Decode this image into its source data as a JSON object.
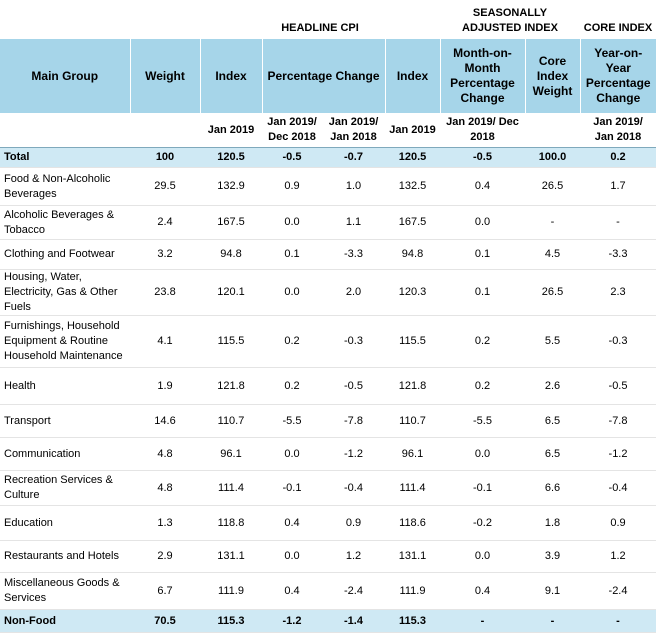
{
  "header": {
    "groups": [
      "HEADLINE CPI",
      "SEASONALLY ADJUSTED INDEX",
      "CORE INDEX"
    ],
    "columns": [
      "Main Group",
      "Weight",
      "Index",
      "Percentage Change",
      "Index",
      "Month-on-Month Percentage Change",
      "Core Index Weight",
      "Year-on-Year Percentage Change"
    ],
    "subheaders": [
      null,
      null,
      "Jan 2019",
      "Jan 2019/ Dec 2018",
      "Jan 2019/ Jan 2018",
      "Jan 2019",
      "Jan 2019/ Dec 2018",
      null,
      "Jan 2019/ Jan 2018"
    ]
  },
  "rows": [
    {
      "label": "Total",
      "values": [
        "100",
        "120.5",
        "-0.5",
        "-0.7",
        "120.5",
        "-0.5",
        "100.0",
        "0.2"
      ]
    },
    {
      "label": "Food & Non-Alcoholic Beverages",
      "values": [
        "29.5",
        "132.9",
        "0.9",
        "1.0",
        "132.5",
        "0.4",
        "26.5",
        "1.7"
      ]
    },
    {
      "label": "Alcoholic Beverages & Tobacco",
      "values": [
        "2.4",
        "167.5",
        "0.0",
        "1.1",
        "167.5",
        "0.0",
        "-",
        "-"
      ]
    },
    {
      "label": "Clothing and Footwear",
      "values": [
        "3.2",
        "94.8",
        "0.1",
        "-3.3",
        "94.8",
        "0.1",
        "4.5",
        "-3.3"
      ]
    },
    {
      "label": "Housing, Water, Electricity, Gas & Other Fuels",
      "values": [
        "23.8",
        "120.1",
        "0.0",
        "2.0",
        "120.3",
        "0.1",
        "26.5",
        "2.3"
      ]
    },
    {
      "label": "Furnishings, Household Equipment & Routine Household Maintenance",
      "values": [
        "4.1",
        "115.5",
        "0.2",
        "-0.3",
        "115.5",
        "0.2",
        "5.5",
        "-0.3"
      ]
    },
    {
      "label": "Health",
      "values": [
        "1.9",
        "121.8",
        "0.2",
        "-0.5",
        "121.8",
        "0.2",
        "2.6",
        "-0.5"
      ]
    },
    {
      "label": "Transport",
      "values": [
        "14.6",
        "110.7",
        "-5.5",
        "-7.8",
        "110.7",
        "-5.5",
        "6.5",
        "-7.8"
      ]
    },
    {
      "label": "Communication",
      "values": [
        "4.8",
        "96.1",
        "0.0",
        "-1.2",
        "96.1",
        "0.0",
        "6.5",
        "-1.2"
      ]
    },
    {
      "label": "Recreation Services & Culture",
      "values": [
        "4.8",
        "111.4",
        "-0.1",
        "-0.4",
        "111.4",
        "-0.1",
        "6.6",
        "-0.4"
      ]
    },
    {
      "label": "Education",
      "values": [
        "1.3",
        "118.8",
        "0.4",
        "0.9",
        "118.6",
        "-0.2",
        "1.8",
        "0.9"
      ]
    },
    {
      "label": "Restaurants and Hotels",
      "values": [
        "2.9",
        "131.1",
        "0.0",
        "1.2",
        "131.1",
        "0.0",
        "3.9",
        "1.2"
      ]
    },
    {
      "label": "Miscellaneous Goods & Services",
      "values": [
        "6.7",
        "111.9",
        "0.4",
        "-2.4",
        "111.9",
        "0.4",
        "9.1",
        "-2.4"
      ]
    },
    {
      "label": "Non-Food",
      "values": [
        "70.5",
        "115.3",
        "-1.2",
        "-1.4",
        "115.3",
        "-",
        "-",
        "-"
      ]
    }
  ]
}
